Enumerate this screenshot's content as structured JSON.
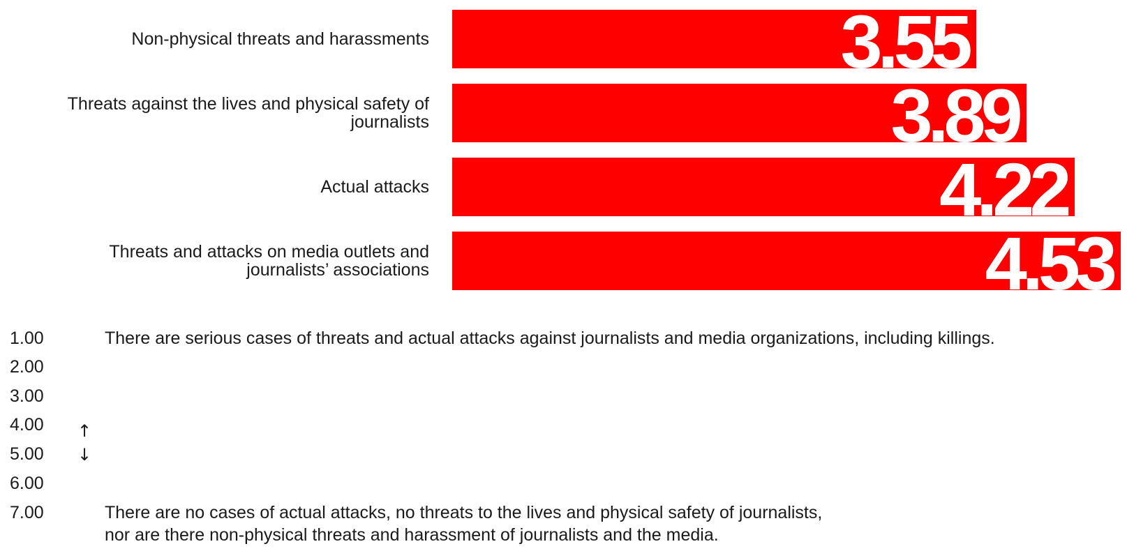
{
  "colors": {
    "bar": "#ff0000",
    "value_text": "#ffffff",
    "text": "#1a1a1a"
  },
  "chart_data": {
    "type": "bar",
    "orientation": "horizontal",
    "title": "",
    "xlabel": "",
    "ylabel": "",
    "xlim": [
      0,
      4.53
    ],
    "grid": false,
    "legend": "none",
    "categories": [
      "Non-physical threats and harassments",
      "Threats against the lives and physical safety of journalists",
      "Actual attacks",
      "Threats and attacks on media outlets and journalists’ associations"
    ],
    "values": [
      3.55,
      3.89,
      4.22,
      4.53
    ],
    "value_labels": [
      "3.55",
      "3.89",
      "4.22",
      "4.53"
    ]
  },
  "scale": {
    "numbers": [
      "1.00",
      "2.00",
      "3.00",
      "4.00",
      "5.00",
      "6.00",
      "7.00"
    ],
    "low_description": "There are serious cases of threats and actual attacks against journalists and media organizations, including killings.",
    "high_description_line1": "There are no cases of actual attacks, no threats to the lives and physical safety of journalists,",
    "high_description_line2": "nor are there non-physical threats and harassment of journalists and the media.",
    "arrow_up": "↑",
    "arrow_down": "↓"
  }
}
